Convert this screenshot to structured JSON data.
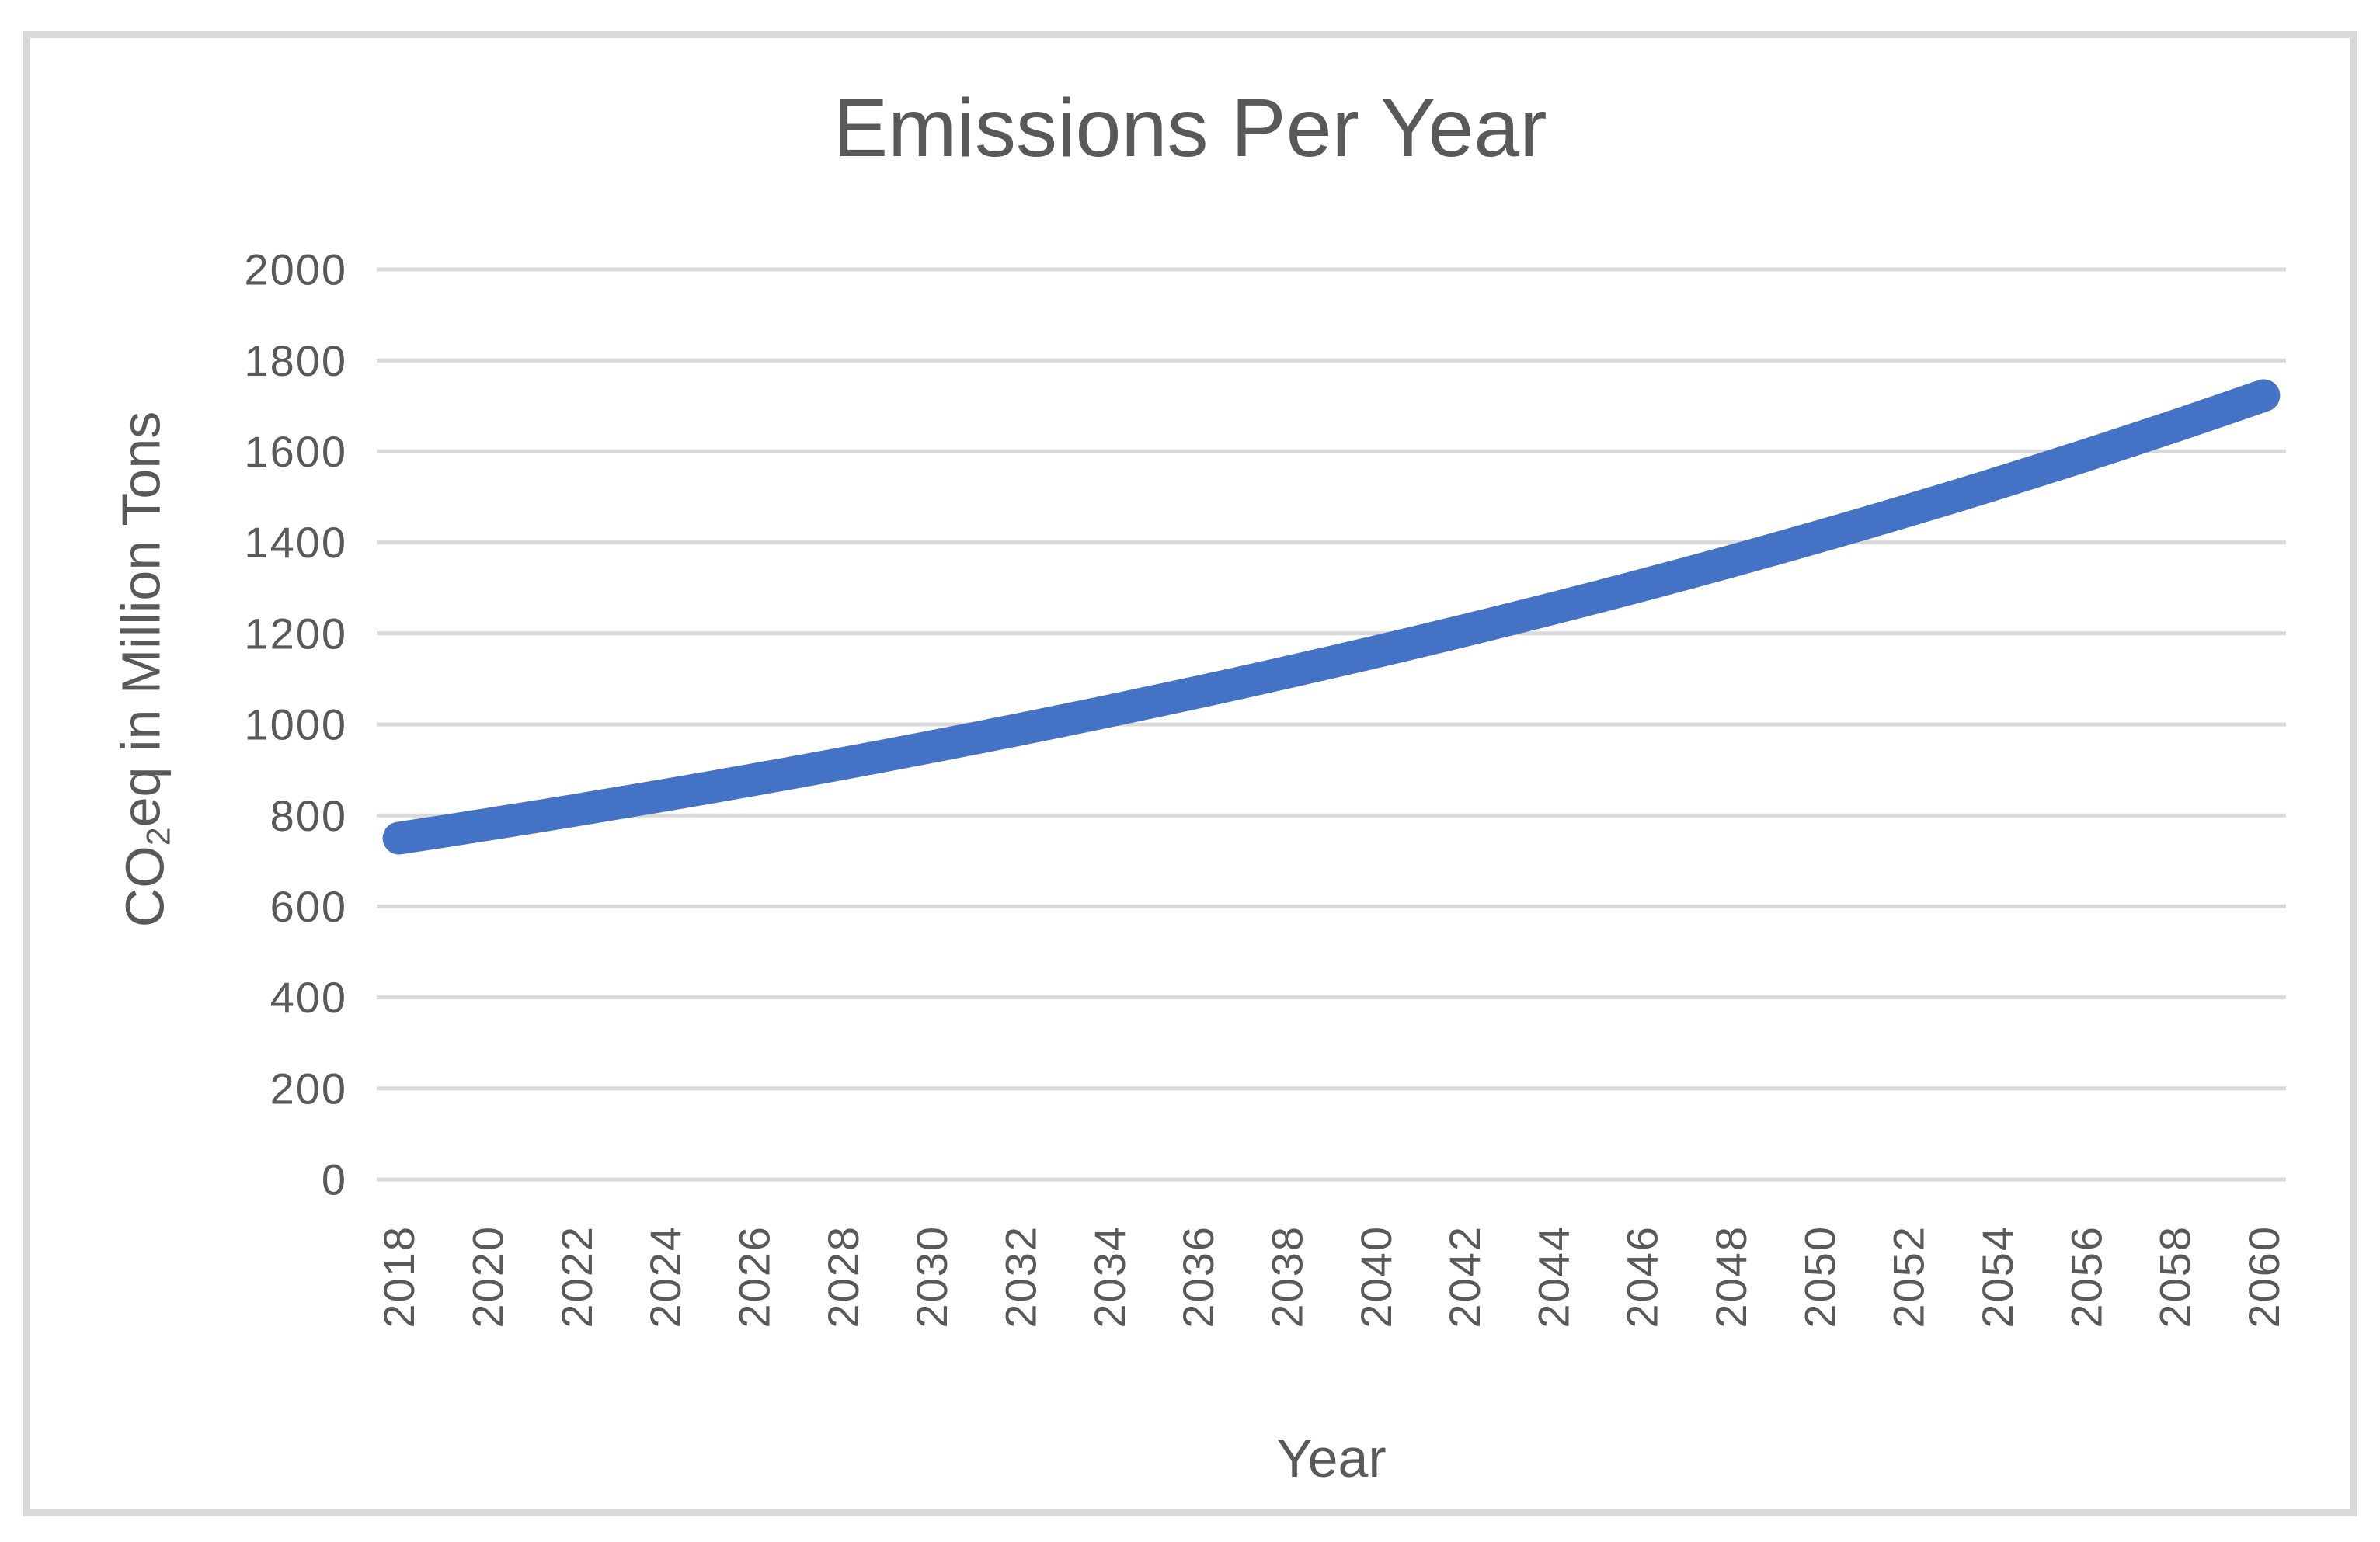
{
  "chart_data": {
    "type": "line",
    "title": "Emissions Per Year",
    "xlabel": "Year",
    "ylabel": "CO2eq in Million Tons",
    "ylabel_parts": [
      {
        "text": "CO",
        "subscript": false
      },
      {
        "text": "2",
        "subscript": true
      },
      {
        "text": "eq  in Million Tons",
        "subscript": false
      }
    ],
    "x": [
      2018,
      2019,
      2020,
      2021,
      2022,
      2023,
      2024,
      2025,
      2026,
      2027,
      2028,
      2029,
      2030,
      2031,
      2032,
      2033,
      2034,
      2035,
      2036,
      2037,
      2038,
      2039,
      2040,
      2041,
      2042,
      2043,
      2044,
      2045,
      2046,
      2047,
      2048,
      2049,
      2050,
      2051,
      2052,
      2053,
      2054,
      2055,
      2056,
      2057,
      2058,
      2059,
      2060
    ],
    "series": [
      {
        "name": "Emissions",
        "values": [
          750.0,
          765.0,
          780.3,
          795.9,
          811.8,
          828.1,
          844.6,
          861.5,
          878.7,
          896.3,
          914.2,
          932.5,
          951.2,
          970.2,
          989.6,
          1009.4,
          1029.6,
          1050.2,
          1071.2,
          1092.6,
          1114.5,
          1136.8,
          1159.5,
          1182.7,
          1206.3,
          1230.5,
          1255.1,
          1280.2,
          1305.8,
          1331.9,
          1358.5,
          1385.7,
          1413.4,
          1441.7,
          1470.5,
          1499.9,
          1529.9,
          1560.5,
          1591.7,
          1623.6,
          1656.0,
          1689.2,
          1722.9
        ]
      }
    ],
    "ylim": [
      0,
      2000
    ],
    "ytick_step": 200,
    "xtick_step": 2,
    "grid": true,
    "legend_position": "none"
  },
  "colors": {
    "line": "#4472C4",
    "gridline": "#D9D9D9",
    "frame_border": "#D9D9D9",
    "text": "#595959",
    "background": "#FFFFFF"
  }
}
